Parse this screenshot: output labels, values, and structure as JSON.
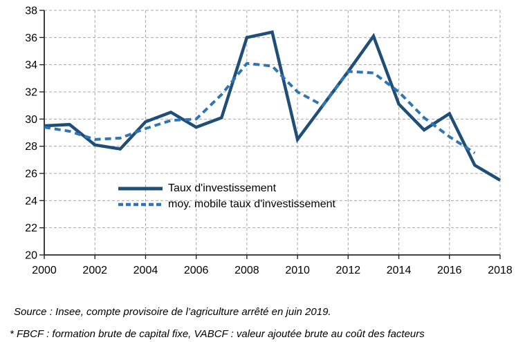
{
  "chart_data": {
    "type": "line",
    "title": "",
    "xlabel": "",
    "ylabel": "",
    "xlim": [
      2000,
      2018
    ],
    "ylim": [
      20,
      38
    ],
    "x_ticks": [
      2000,
      2002,
      2004,
      2006,
      2008,
      2010,
      2012,
      2014,
      2016,
      2018
    ],
    "y_ticks": [
      20,
      22,
      24,
      26,
      28,
      30,
      32,
      34,
      36,
      38
    ],
    "grid": true,
    "legend_position": "inside-lower-left",
    "categories": [
      2000,
      2001,
      2002,
      2003,
      2004,
      2005,
      2006,
      2007,
      2008,
      2009,
      2010,
      2011,
      2012,
      2013,
      2014,
      2015,
      2016,
      2017,
      2018
    ],
    "series": [
      {
        "id": "taux",
        "name": "Taux d'investissement",
        "color": "#1F4E79",
        "style": "solid",
        "line_width": 4.5,
        "values": [
          29.5,
          29.6,
          28.1,
          27.8,
          29.8,
          30.5,
          29.4,
          30.1,
          36.0,
          36.4,
          28.5,
          31.0,
          33.5,
          36.1,
          31.1,
          29.2,
          30.4,
          26.6,
          25.5
        ]
      },
      {
        "id": "moyenne-mobile",
        "name": "moy. mobile taux d'investissement",
        "color": "#2E75B6",
        "style": "dashed",
        "line_width": 4,
        "values": [
          29.4,
          29.1,
          28.5,
          28.6,
          29.3,
          29.9,
          30.0,
          31.8,
          34.1,
          33.9,
          32.0,
          31.0,
          33.5,
          33.4,
          32.0,
          30.1,
          28.7,
          27.5
        ]
      }
    ]
  },
  "notes": {
    "source": "Source : Insee, compte provisoire de l’agriculture arrêté en juin 2019.",
    "footnote": "* FBCF : formation brute de capital fixe, VABCF : valeur ajoutée brute au coût des facteurs"
  },
  "colors": {
    "solid_line": "#1F4E79",
    "dashed_line": "#2E75B6",
    "gridline": "#A6A6A6",
    "axis": "#262626",
    "text": "#000000",
    "background": "#FFFFFF"
  }
}
